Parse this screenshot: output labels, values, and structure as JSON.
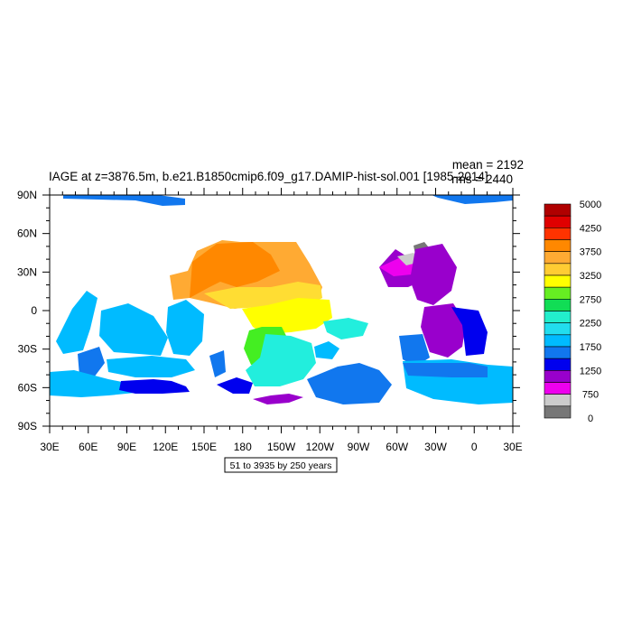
{
  "chart_data": {
    "type": "map",
    "title": "IAGE at z=3876.5m, b.e21.B1850cmip6.f09_g17.DAMIP-hist-sol.001 [1985-2014]",
    "stats": {
      "mean": "mean = 2192",
      "rms": "rms = 2440"
    },
    "info_box": "51 to 3935 by 250 years",
    "lon_ticks": [
      "30E",
      "60E",
      "90E",
      "120E",
      "150E",
      "180",
      "150W",
      "120W",
      "90W",
      "60W",
      "30W",
      "0",
      "30E"
    ],
    "lat_ticks": [
      "90N",
      "60N",
      "30N",
      "0",
      "30S",
      "60S",
      "90S"
    ],
    "colorbar": {
      "labels": [
        "5000",
        "4250",
        "3750",
        "3250",
        "2750",
        "2250",
        "1750",
        "1250",
        "750",
        "0"
      ],
      "colors": [
        "#b00000",
        "#e00000",
        "#ff3300",
        "#ff8800",
        "#ffaa33",
        "#ffcc33",
        "#ffff00",
        "#66ee22",
        "#11dd55",
        "#22eecc",
        "#22ddee",
        "#00bbff",
        "#1177ee",
        "#0000ee",
        "#9900cc",
        "#ee00ee",
        "#cccccc",
        "#777777"
      ]
    }
  }
}
